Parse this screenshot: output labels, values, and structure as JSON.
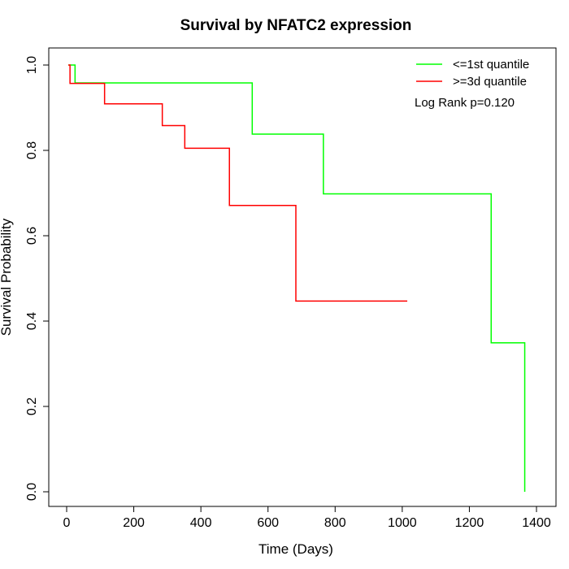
{
  "chart_data": {
    "type": "line",
    "step": "post",
    "title": "Survival by NFATC2 expression",
    "xlabel": "Time (Days)",
    "ylabel": "Survival Probability",
    "xlim": [
      0,
      1400
    ],
    "ylim": [
      0,
      1
    ],
    "xticks": [
      0,
      200,
      400,
      600,
      800,
      1000,
      1200,
      1400
    ],
    "xtick_labels": [
      "0",
      "200",
      "400",
      "600",
      "800",
      "1000",
      "1200",
      "1400"
    ],
    "yticks": [
      0,
      0.2,
      0.4,
      0.6,
      0.8,
      1.0
    ],
    "ytick_labels": [
      "0.0",
      "0.2",
      "0.4",
      "0.6",
      "0.8",
      "1.0"
    ],
    "grid": false,
    "legend_position": "top-right",
    "series": [
      {
        "name": "<=1st quantile",
        "color": "#00ff00",
        "points": [
          [
            5,
            1.0
          ],
          [
            25,
            0.958
          ],
          [
            553,
            0.838
          ],
          [
            765,
            0.698
          ],
          [
            1265,
            0.349
          ],
          [
            1365,
            0.0
          ]
        ]
      },
      {
        "name": ">=3d quantile",
        "color": "#ff0000",
        "points": [
          [
            5,
            1.0
          ],
          [
            10,
            0.957
          ],
          [
            113,
            0.909
          ],
          [
            285,
            0.858
          ],
          [
            352,
            0.805
          ],
          [
            485,
            0.671
          ],
          [
            683,
            0.447
          ],
          [
            1015,
            0.447
          ]
        ]
      }
    ],
    "annotations": [
      {
        "text": "Log Rank p=0.120",
        "position": "top-right"
      }
    ]
  }
}
